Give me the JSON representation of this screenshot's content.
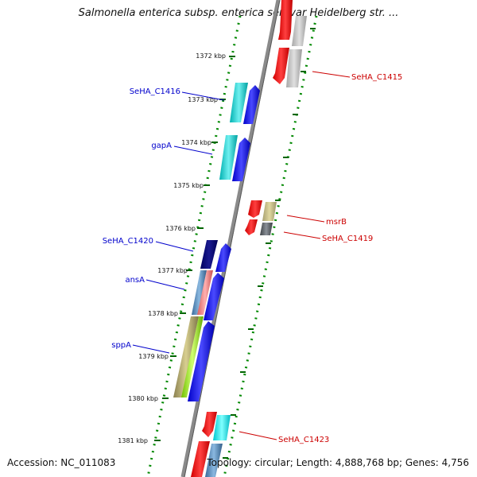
{
  "header": {
    "title": "Salmonella enterica subsp. enterica serovar Heidelberg str. ..."
  },
  "footer": {
    "accession": "Accession: NC_011083",
    "topology": "Topology: circular; Length: 4,888,768 bp; Genes: 4,756"
  },
  "kbp_labels": [
    "1372 kbp",
    "1373 kbp",
    "1374 kbp",
    "1375 kbp",
    "1376 kbp",
    "1377 kbp",
    "1378 kbp",
    "1379 kbp",
    "1380 kbp",
    "1381 kbp"
  ],
  "gene_labels": {
    "left": [
      "SeHA_C1416",
      "gapA",
      "SeHA_C1420",
      "ansA",
      "sppA"
    ],
    "right": [
      "SeHA_C1415",
      "msrB",
      "SeHA_C1419",
      "SeHA_C1423"
    ]
  },
  "colors": {
    "left_label": "#0000cc",
    "right_label": "#cc0000",
    "backbone": "#888888",
    "track_dots": "#008800",
    "tick": "#006600"
  }
}
